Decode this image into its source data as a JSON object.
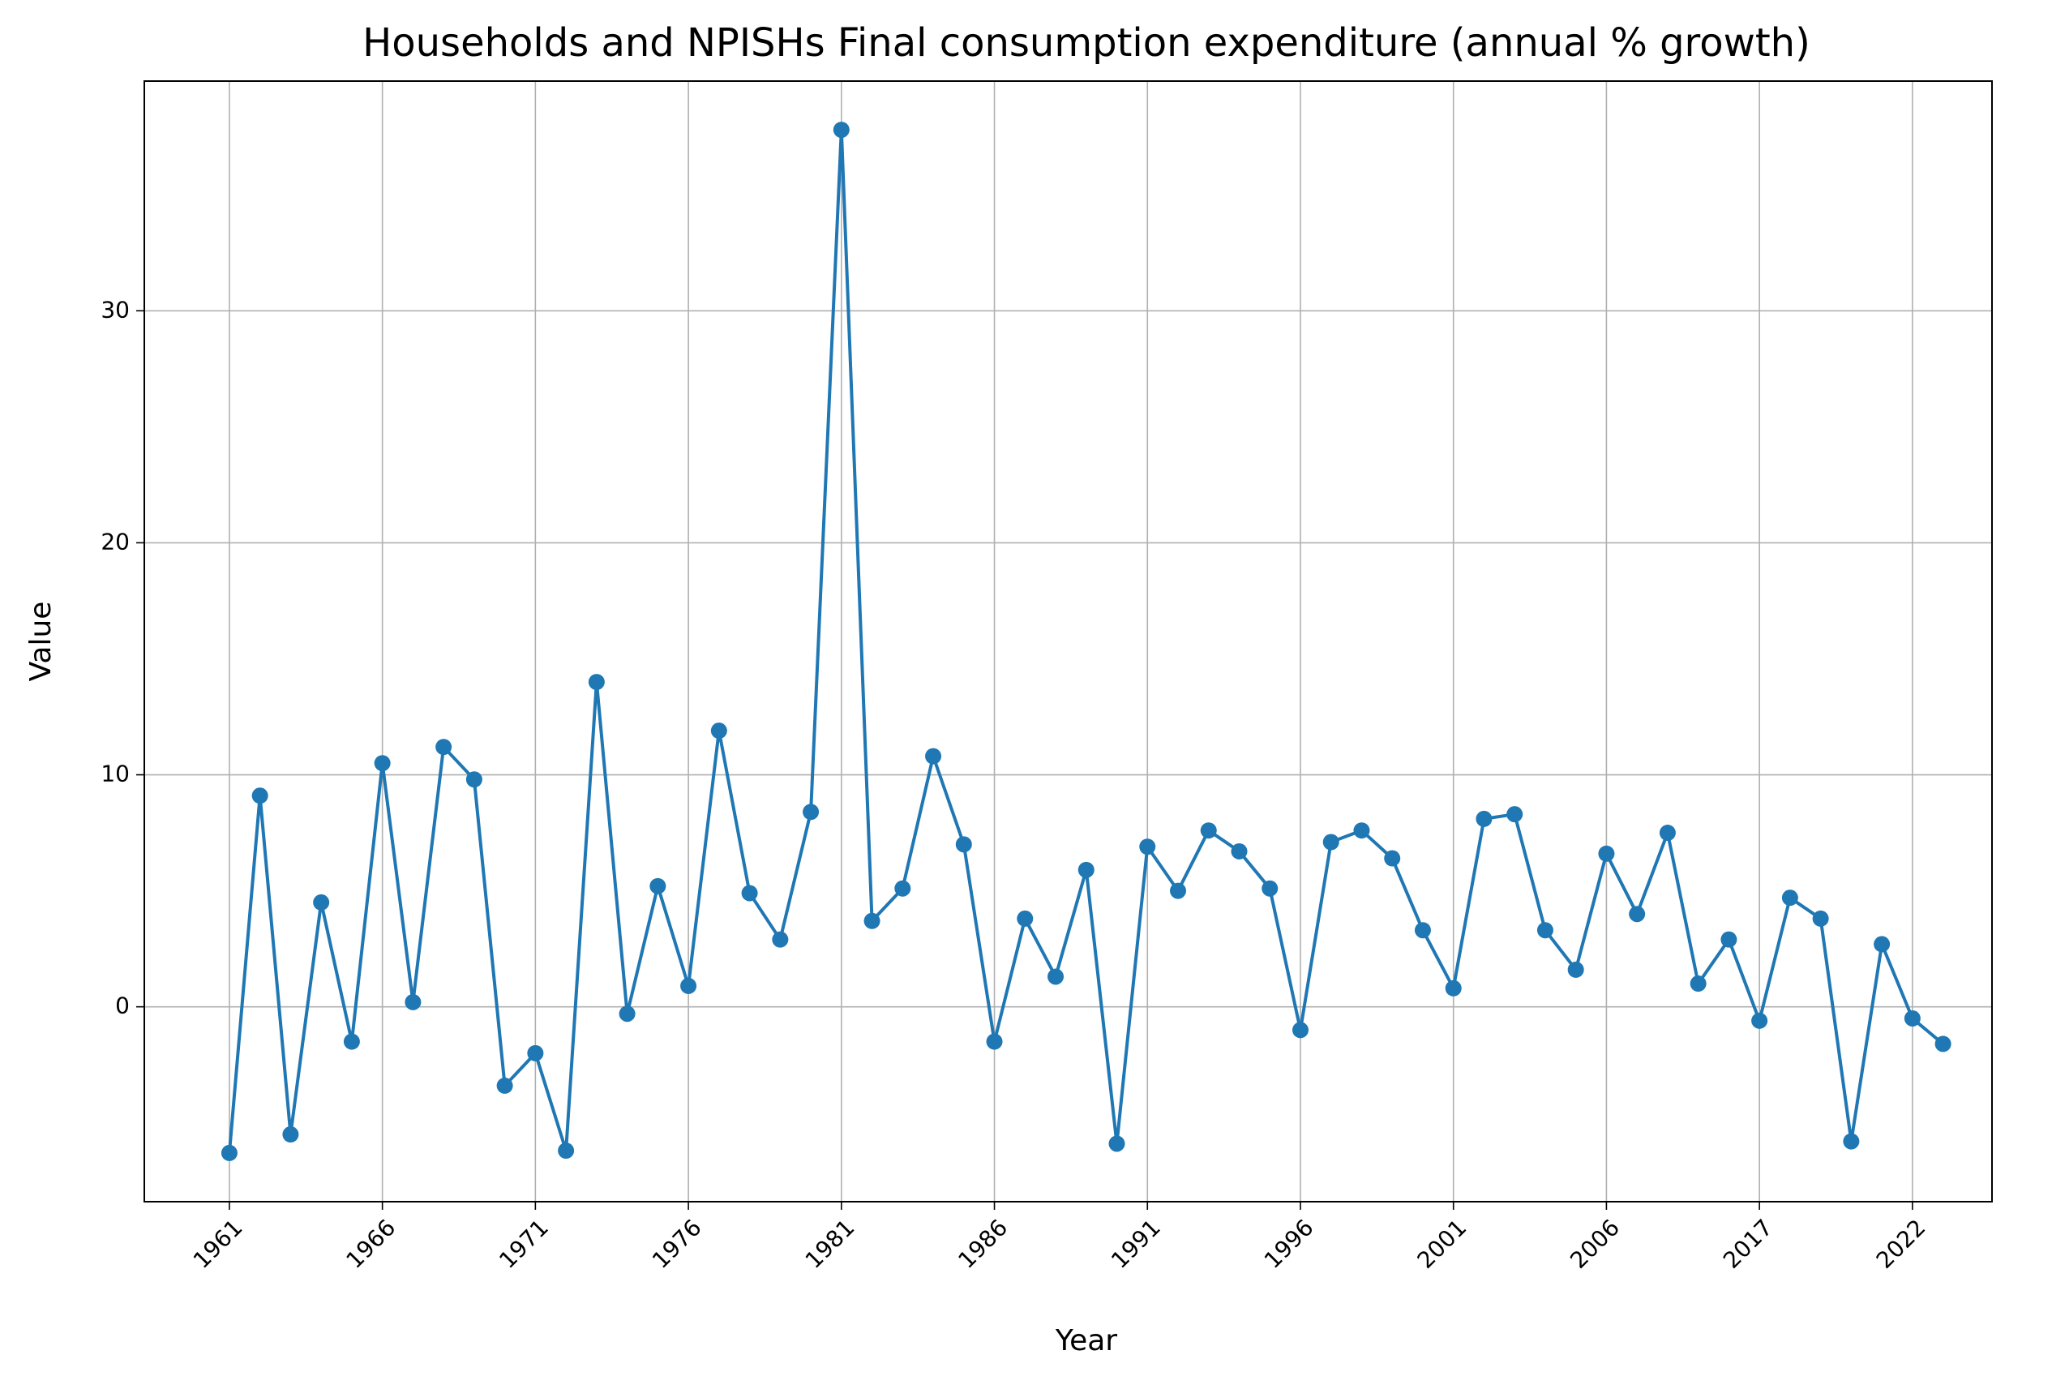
{
  "chart_data": {
    "type": "line",
    "title": "Households and NPISHs Final consumption expenditure (annual % growth)",
    "x_label": "Year",
    "y_label": "Value",
    "categories": [
      "1961",
      null,
      null,
      null,
      null,
      "1966",
      null,
      null,
      null,
      null,
      "1971",
      null,
      null,
      null,
      null,
      "1976",
      null,
      null,
      null,
      null,
      "1981",
      null,
      null,
      null,
      null,
      "1986",
      null,
      null,
      null,
      null,
      "1991",
      null,
      null,
      null,
      null,
      "1996",
      null,
      null,
      null,
      null,
      "2001",
      null,
      null,
      null,
      null,
      "2006",
      null,
      null,
      null,
      null,
      "2017",
      null,
      null,
      null,
      null,
      "2022",
      null
    ],
    "series": [
      {
        "name": "Value",
        "color": "#1f77b4",
        "values": [
          -6.3,
          9.1,
          -5.5,
          4.5,
          -1.5,
          10.5,
          0.2,
          11.2,
          9.8,
          -3.4,
          -2.0,
          -6.2,
          14.0,
          -0.3,
          5.2,
          0.9,
          11.9,
          4.9,
          2.9,
          8.4,
          37.8,
          3.7,
          5.1,
          10.8,
          7.0,
          -1.5,
          3.8,
          1.3,
          5.9,
          -5.9,
          6.9,
          5.0,
          7.6,
          6.7,
          5.1,
          -1.0,
          7.1,
          7.6,
          6.4,
          3.3,
          0.8,
          8.1,
          8.3,
          3.3,
          1.6,
          6.6,
          4.0,
          7.5,
          1.0,
          2.9,
          -0.6,
          4.7,
          3.8,
          -5.8,
          2.7,
          -0.5,
          -1.6
        ]
      }
    ],
    "ylim": [
      -8.4,
      39.9
    ],
    "yticks": [
      0,
      10,
      20,
      30
    ],
    "grid": true
  }
}
